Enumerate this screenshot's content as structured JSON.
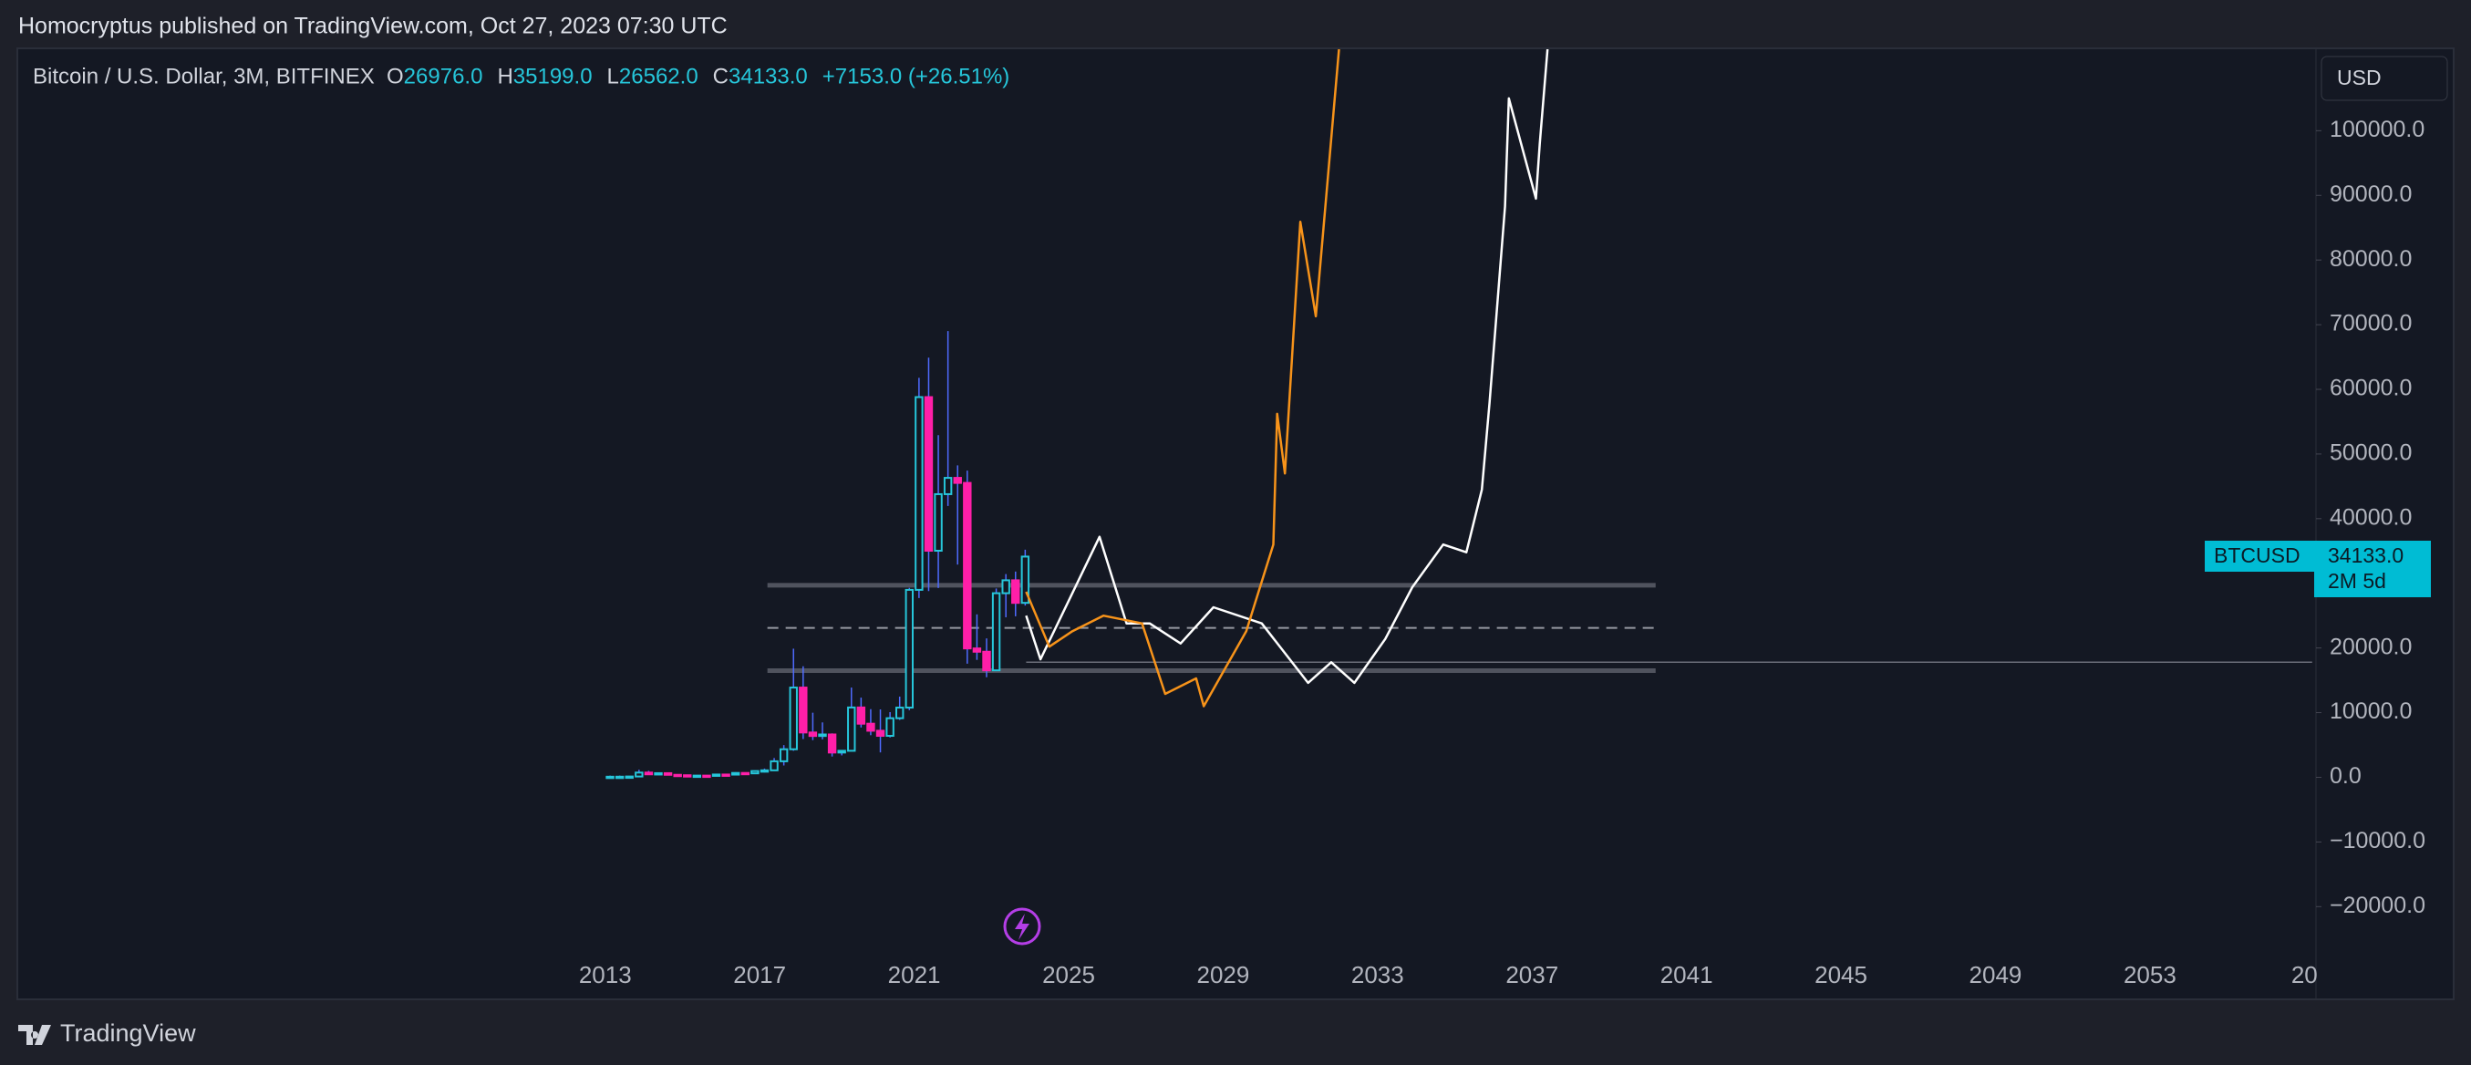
{
  "header": {
    "published": "Homocryptus published on TradingView.com, Oct 27, 2023 07:30 UTC",
    "symbol": "Bitcoin / U.S. Dollar, 3M, BITFINEX",
    "o_label": "O",
    "o": "26976.0",
    "h_label": "H",
    "h": "35199.0",
    "l_label": "L",
    "l": "26562.0",
    "c_label": "C",
    "c": "34133.0",
    "change": "+7153.0 (+26.51%)",
    "currency": "USD",
    "price_symbol": "BTCUSD",
    "price": "34133.0",
    "countdown": "2M 5d"
  },
  "footer": {
    "brand": "TradingView"
  },
  "chart_data": {
    "type": "candlestick",
    "xlim": [
      1997.8,
      2057.3
    ],
    "ylim": [
      -34200,
      112600
    ],
    "xticks": [
      2013,
      2017,
      2021,
      2025,
      2029,
      2033,
      2037,
      2041,
      2045,
      2049,
      2053,
      {
        "value": 2057,
        "label": "20"
      }
    ],
    "yticks": [
      {
        "value": -20000,
        "label": "−20000.0"
      },
      {
        "value": -10000,
        "label": "−10000.0"
      },
      {
        "value": 0,
        "label": "0.0"
      },
      {
        "value": 10000,
        "label": "10000.0"
      },
      {
        "value": 20000,
        "label": "20000.0"
      },
      {
        "value": 30000,
        "label": "30000.0"
      },
      {
        "value": 40000,
        "label": "40000.0"
      },
      {
        "value": 50000,
        "label": "50000.0"
      },
      {
        "value": 60000,
        "label": "60000.0"
      },
      {
        "value": 70000,
        "label": "70000.0"
      },
      {
        "value": 80000,
        "label": "80000.0"
      },
      {
        "value": 90000,
        "label": "90000.0"
      },
      {
        "value": 100000,
        "label": "100000.0"
      }
    ],
    "up_color": "#26c6da",
    "down_color": "#ff1fa8",
    "wick_color": "#4f6bff",
    "candles": {
      "x": [
        2013.125,
        2013.375,
        2013.625,
        2013.875,
        2014.125,
        2014.375,
        2014.625,
        2014.875,
        2015.125,
        2015.375,
        2015.625,
        2015.875,
        2016.125,
        2016.375,
        2016.625,
        2016.875,
        2017.125,
        2017.375,
        2017.625,
        2017.875,
        2018.125,
        2018.375,
        2018.625,
        2018.875,
        2019.125,
        2019.375,
        2019.625,
        2019.875,
        2020.125,
        2020.375,
        2020.625,
        2020.875,
        2021.125,
        2021.375,
        2021.625,
        2021.875,
        2022.125,
        2022.375,
        2022.625,
        2022.875,
        2023.125,
        2023.375,
        2023.625,
        2023.875
      ],
      "open": [
        13,
        93,
        97,
        125,
        732,
        458,
        640,
        386,
        320,
        244,
        264,
        236,
        430,
        416,
        673,
        610,
        966,
        1079,
        2480,
        4340,
        13880,
        6930,
        6390,
        6626,
        3830,
        4100,
        10800,
        8290,
        7200,
        6410,
        9140,
        10780,
        28990,
        58800,
        35040,
        43790,
        46310,
        45530,
        19930,
        19420,
        16540,
        28470,
        30470,
        26976
      ],
      "high": [
        260,
        266,
        145,
        1163,
        1000,
        680,
        650,
        460,
        320,
        267,
        317,
        500,
        463,
        780,
        680,
        980,
        1350,
        2980,
        4980,
        19891,
        17170,
        9990,
        8490,
        6800,
        4200,
        13880,
        12320,
        10540,
        10500,
        10080,
        12480,
        29300,
        61780,
        64900,
        52920,
        69000,
        48240,
        47440,
        25200,
        21480,
        29200,
        31430,
        31820,
        35199
      ],
      "low": [
        13,
        65,
        68,
        118,
        420,
        360,
        365,
        300,
        170,
        200,
        198,
        236,
        360,
        415,
        470,
        595,
        750,
        1060,
        1830,
        4100,
        5920,
        5750,
        5860,
        3215,
        3390,
        4070,
        7700,
        6510,
        3850,
        6160,
        8880,
        10380,
        27730,
        28800,
        29280,
        41970,
        32900,
        17570,
        18160,
        15480,
        16500,
        24750,
        24900,
        26562
      ],
      "close": [
        93,
        97,
        125,
        732,
        458,
        640,
        386,
        320,
        244,
        264,
        236,
        430,
        416,
        673,
        610,
        966,
        1079,
        2480,
        4340,
        13880,
        6930,
        6390,
        6626,
        3830,
        4100,
        10800,
        8290,
        7200,
        6410,
        9140,
        10780,
        28990,
        58800,
        35040,
        43790,
        46310,
        45530,
        19930,
        19420,
        16540,
        28470,
        30470,
        26976,
        34133
      ]
    },
    "lines": [
      {
        "color": "#ffffff",
        "x": [
          2023.9,
          2024.27,
          2025.8,
          2026.5,
          2027.1,
          2027.9,
          2028.75,
          2030.0,
          2031.2,
          2031.8,
          2032.4,
          2033.2,
          2033.9,
          2034.7,
          2035.3,
          2035.7,
          2035.9,
          2036.3,
          2036.4,
          2037.1,
          2037.2,
          2037.4
        ],
        "values": [
          25000,
          18250,
          37200,
          23800,
          23800,
          20700,
          26300,
          23800,
          14600,
          17800,
          14600,
          21400,
          29400,
          36000,
          34800,
          44500,
          57900,
          88300,
          105000,
          89500,
          98000,
          112600
        ]
      },
      {
        "color": "#f7931a",
        "x": [
          2023.9,
          2024.5,
          2025.1,
          2025.9,
          2026.9,
          2027.5,
          2028.3,
          2028.5,
          2029.6,
          2030.3,
          2030.4,
          2030.6,
          2031.0,
          2031.4,
          2032.0
        ],
        "values": [
          28700,
          20200,
          22600,
          25000,
          23800,
          12900,
          15300,
          11000,
          22600,
          36000,
          56200,
          47000,
          85900,
          71300,
          112600
        ]
      }
    ],
    "levels": [
      {
        "value": 29700,
        "dashed": false,
        "x": [
          2017.2,
          2040.2
        ]
      },
      {
        "value": 23100,
        "dashed": true,
        "x": [
          2017.2,
          2040.2
        ]
      },
      {
        "value": 16500,
        "dashed": false,
        "x": [
          2017.2,
          2040.2
        ]
      },
      {
        "value": 17800,
        "dashed": false,
        "x": [
          2023.9,
          2057.2
        ]
      }
    ]
  }
}
